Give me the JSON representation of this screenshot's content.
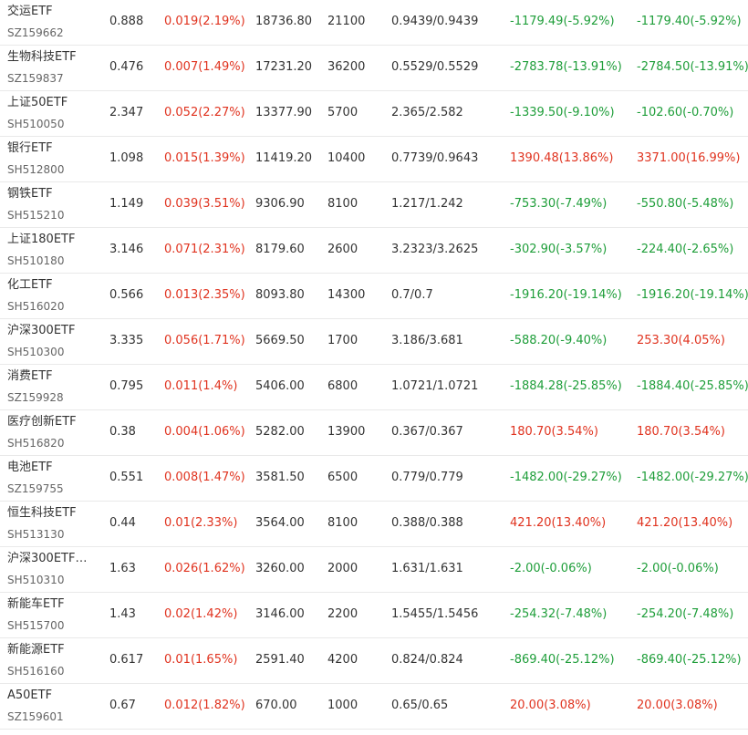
{
  "colors": {
    "gain": "#e0331f",
    "loss": "#1f9e3a",
    "text": "#333333",
    "subtext": "#666666",
    "divider": "#e9e9e9"
  },
  "rows": [
    {
      "name": "交运ETF",
      "code": "SZ159662",
      "price": "0.888",
      "change": "0.019(2.19%)",
      "change_dir": "up",
      "market_value": "18736.80",
      "quantity": "21100",
      "cost": "0.9439/0.9439",
      "pnl": "-1179.49(-5.92%)",
      "pnl_dir": "down",
      "total_pnl": "-1179.40(-5.92%)",
      "total_dir": "down"
    },
    {
      "name": "生物科技ETF",
      "code": "SZ159837",
      "price": "0.476",
      "change": "0.007(1.49%)",
      "change_dir": "up",
      "market_value": "17231.20",
      "quantity": "36200",
      "cost": "0.5529/0.5529",
      "pnl": "-2783.78(-13.91%)",
      "pnl_dir": "down",
      "total_pnl": "-2784.50(-13.91%)",
      "total_dir": "down"
    },
    {
      "name": "上证50ETF",
      "code": "SH510050",
      "price": "2.347",
      "change": "0.052(2.27%)",
      "change_dir": "up",
      "market_value": "13377.90",
      "quantity": "5700",
      "cost": "2.365/2.582",
      "pnl": "-1339.50(-9.10%)",
      "pnl_dir": "down",
      "total_pnl": "-102.60(-0.70%)",
      "total_dir": "down"
    },
    {
      "name": "银行ETF",
      "code": "SH512800",
      "price": "1.098",
      "change": "0.015(1.39%)",
      "change_dir": "up",
      "market_value": "11419.20",
      "quantity": "10400",
      "cost": "0.7739/0.9643",
      "pnl": "1390.48(13.86%)",
      "pnl_dir": "up",
      "total_pnl": "3371.00(16.99%)",
      "total_dir": "up"
    },
    {
      "name": "钢铁ETF",
      "code": "SH515210",
      "price": "1.149",
      "change": "0.039(3.51%)",
      "change_dir": "up",
      "market_value": "9306.90",
      "quantity": "8100",
      "cost": "1.217/1.242",
      "pnl": "-753.30(-7.49%)",
      "pnl_dir": "down",
      "total_pnl": "-550.80(-5.48%)",
      "total_dir": "down"
    },
    {
      "name": "上证180ETF",
      "code": "SH510180",
      "price": "3.146",
      "change": "0.071(2.31%)",
      "change_dir": "up",
      "market_value": "8179.60",
      "quantity": "2600",
      "cost": "3.2323/3.2625",
      "pnl": "-302.90(-3.57%)",
      "pnl_dir": "down",
      "total_pnl": "-224.40(-2.65%)",
      "total_dir": "down"
    },
    {
      "name": "化工ETF",
      "code": "SH516020",
      "price": "0.566",
      "change": "0.013(2.35%)",
      "change_dir": "up",
      "market_value": "8093.80",
      "quantity": "14300",
      "cost": "0.7/0.7",
      "pnl": "-1916.20(-19.14%)",
      "pnl_dir": "down",
      "total_pnl": "-1916.20(-19.14%)",
      "total_dir": "down"
    },
    {
      "name": "沪深300ETF",
      "code": "SH510300",
      "price": "3.335",
      "change": "0.056(1.71%)",
      "change_dir": "up",
      "market_value": "5669.50",
      "quantity": "1700",
      "cost": "3.186/3.681",
      "pnl": "-588.20(-9.40%)",
      "pnl_dir": "down",
      "total_pnl": "253.30(4.05%)",
      "total_dir": "up"
    },
    {
      "name": "消费ETF",
      "code": "SZ159928",
      "price": "0.795",
      "change": "0.011(1.4%)",
      "change_dir": "up",
      "market_value": "5406.00",
      "quantity": "6800",
      "cost": "1.0721/1.0721",
      "pnl": "-1884.28(-25.85%)",
      "pnl_dir": "down",
      "total_pnl": "-1884.40(-25.85%)",
      "total_dir": "down"
    },
    {
      "name": "医疗创新ETF",
      "code": "SH516820",
      "price": "0.38",
      "change": "0.004(1.06%)",
      "change_dir": "up",
      "market_value": "5282.00",
      "quantity": "13900",
      "cost": "0.367/0.367",
      "pnl": "180.70(3.54%)",
      "pnl_dir": "up",
      "total_pnl": "180.70(3.54%)",
      "total_dir": "up"
    },
    {
      "name": "电池ETF",
      "code": "SZ159755",
      "price": "0.551",
      "change": "0.008(1.47%)",
      "change_dir": "up",
      "market_value": "3581.50",
      "quantity": "6500",
      "cost": "0.779/0.779",
      "pnl": "-1482.00(-29.27%)",
      "pnl_dir": "down",
      "total_pnl": "-1482.00(-29.27%)",
      "total_dir": "down"
    },
    {
      "name": "恒生科技ETF",
      "code": "SH513130",
      "price": "0.44",
      "change": "0.01(2.33%)",
      "change_dir": "up",
      "market_value": "3564.00",
      "quantity": "8100",
      "cost": "0.388/0.388",
      "pnl": "421.20(13.40%)",
      "pnl_dir": "up",
      "total_pnl": "421.20(13.40%)",
      "total_dir": "up"
    },
    {
      "name": "沪深300ETF…",
      "code": "SH510310",
      "price": "1.63",
      "change": "0.026(1.62%)",
      "change_dir": "up",
      "market_value": "3260.00",
      "quantity": "2000",
      "cost": "1.631/1.631",
      "pnl": "-2.00(-0.06%)",
      "pnl_dir": "down",
      "total_pnl": "-2.00(-0.06%)",
      "total_dir": "down"
    },
    {
      "name": "新能车ETF",
      "code": "SH515700",
      "price": "1.43",
      "change": "0.02(1.42%)",
      "change_dir": "up",
      "market_value": "3146.00",
      "quantity": "2200",
      "cost": "1.5455/1.5456",
      "pnl": "-254.32(-7.48%)",
      "pnl_dir": "down",
      "total_pnl": "-254.20(-7.48%)",
      "total_dir": "down"
    },
    {
      "name": "新能源ETF",
      "code": "SH516160",
      "price": "0.617",
      "change": "0.01(1.65%)",
      "change_dir": "up",
      "market_value": "2591.40",
      "quantity": "4200",
      "cost": "0.824/0.824",
      "pnl": "-869.40(-25.12%)",
      "pnl_dir": "down",
      "total_pnl": "-869.40(-25.12%)",
      "total_dir": "down"
    },
    {
      "name": "A50ETF",
      "code": "SZ159601",
      "price": "0.67",
      "change": "0.012(1.82%)",
      "change_dir": "up",
      "market_value": "670.00",
      "quantity": "1000",
      "cost": "0.65/0.65",
      "pnl": "20.00(3.08%)",
      "pnl_dir": "up",
      "total_pnl": "20.00(3.08%)",
      "total_dir": "up"
    }
  ]
}
